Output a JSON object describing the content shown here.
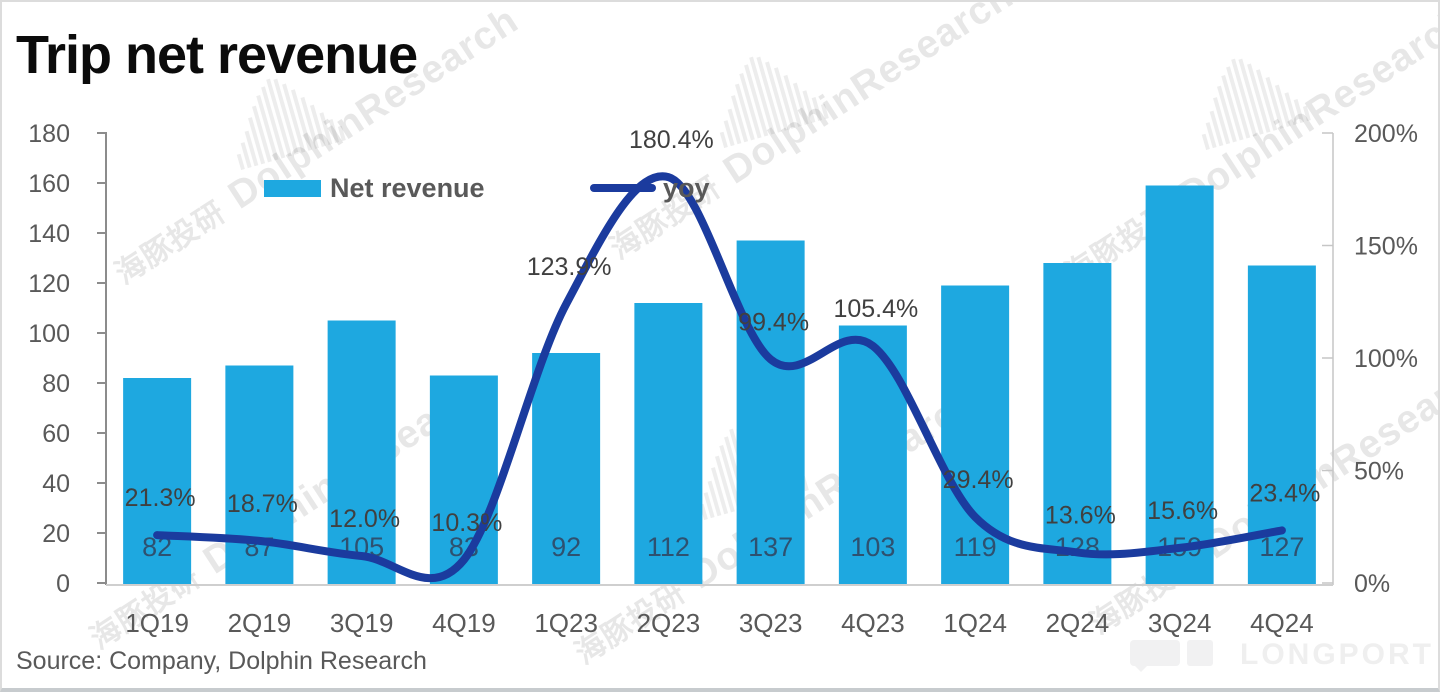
{
  "header": {
    "title": "Trip net revenue"
  },
  "legend": {
    "net_revenue": "Net revenue",
    "yoy": "yoy"
  },
  "footer": {
    "source": "Source: Company, Dolphin Research",
    "brand": "LONGPORT"
  },
  "watermark": {
    "cn": "海豚投研",
    "en": "DolphinResearch",
    "icon": "dolphin-bars-watermark-icon"
  },
  "colors": {
    "bar": "#1EA8E0",
    "line": "#1B3B9E",
    "axis_label": "#595959",
    "bar_value_label": "#2E5170",
    "yoy_label": "#404040"
  },
  "chart_data": {
    "type": "bar+line combo",
    "title": "Trip net revenue",
    "categories": [
      "1Q19",
      "2Q19",
      "3Q19",
      "4Q19",
      "1Q23",
      "2Q23",
      "3Q23",
      "4Q23",
      "1Q24",
      "2Q24",
      "3Q24",
      "4Q24"
    ],
    "series": [
      {
        "name": "Net revenue",
        "type": "bar",
        "axis": "left",
        "values": [
          82,
          87,
          105,
          83,
          92,
          112,
          137,
          103,
          119,
          128,
          159,
          127
        ]
      },
      {
        "name": "yoy",
        "type": "line",
        "axis": "right",
        "unit": "%",
        "values": [
          21.3,
          18.7,
          12.0,
          10.3,
          123.9,
          180.4,
          99.4,
          105.4,
          29.4,
          13.6,
          15.6,
          23.4
        ],
        "labels": [
          "21.3%",
          "18.7%",
          "12.0%",
          "10.3%",
          "123.9%",
          "180.4%",
          "99.4%",
          "105.4%",
          "29.4%",
          "13.6%",
          "15.6%",
          "23.4%"
        ]
      }
    ],
    "left_axis": {
      "min": 0,
      "max": 180,
      "step": 20,
      "tick_labels": [
        "0",
        "20",
        "40",
        "60",
        "80",
        "100",
        "120",
        "140",
        "160",
        "180"
      ]
    },
    "right_axis": {
      "min": 0,
      "max": 200,
      "step": 50,
      "suffix": "%",
      "tick_labels": [
        "0%",
        "50%",
        "100%",
        "150%",
        "200%"
      ]
    },
    "grid": false,
    "legend_position": "top-center",
    "data_labels": "bar values inside bars near baseline; yoy % above line points"
  }
}
